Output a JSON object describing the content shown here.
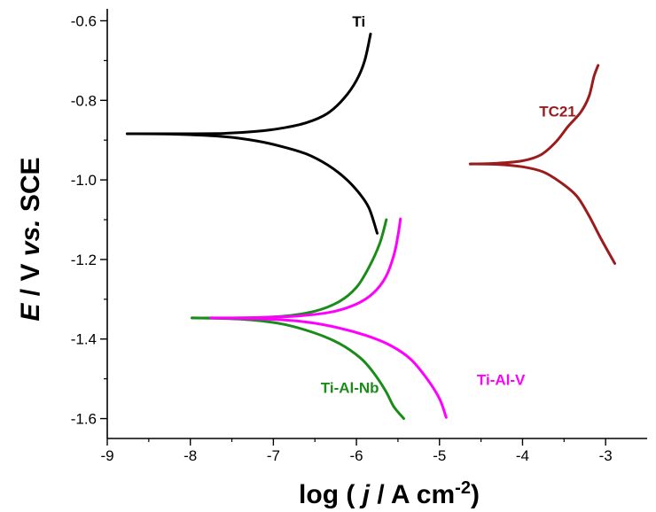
{
  "chart_data": {
    "type": "line",
    "xlabel": {
      "prefix": "log ( ",
      "italic": "j",
      "middle": " / A cm",
      "sup": "-2",
      "suffix": ")"
    },
    "ylabel": {
      "italic_e": "E",
      "middle": " / V ",
      "italic_vs": "vs.",
      "suffix": " SCE"
    },
    "xlim": [
      -9,
      -2.5
    ],
    "ylim": [
      -1.65,
      -0.57
    ],
    "xticks": [
      -9,
      -8,
      -7,
      -6,
      -5,
      -4,
      -3
    ],
    "xtick_labels": [
      "-9",
      "-8",
      "-7",
      "-6",
      "-5",
      "-4",
      "-3"
    ],
    "yticks": [
      -0.6,
      -0.8,
      -1.0,
      -1.2,
      -1.4,
      -1.6
    ],
    "ytick_labels": [
      "-0.6",
      "-0.8",
      "-1.0",
      "-1.2",
      "-1.4",
      "-1.6"
    ],
    "grid": false,
    "series": [
      {
        "name": "Ti",
        "color": "#000000",
        "branches": [
          [
            [
              -8.76,
              -0.884
            ],
            [
              -8.2,
              -0.884
            ],
            [
              -7.6,
              -0.883
            ],
            [
              -7.2,
              -0.878
            ],
            [
              -6.9,
              -0.87
            ],
            [
              -6.6,
              -0.856
            ],
            [
              -6.35,
              -0.833
            ],
            [
              -6.15,
              -0.795
            ],
            [
              -6.0,
              -0.75
            ],
            [
              -5.9,
              -0.7
            ],
            [
              -5.83,
              -0.633
            ]
          ],
          [
            [
              -8.76,
              -0.884
            ],
            [
              -8.2,
              -0.885
            ],
            [
              -7.6,
              -0.891
            ],
            [
              -7.2,
              -0.902
            ],
            [
              -6.9,
              -0.916
            ],
            [
              -6.6,
              -0.935
            ],
            [
              -6.35,
              -0.962
            ],
            [
              -6.15,
              -0.993
            ],
            [
              -5.98,
              -1.03
            ],
            [
              -5.85,
              -1.07
            ],
            [
              -5.75,
              -1.134
            ]
          ]
        ]
      },
      {
        "name": "TC21",
        "color": "#9b1c1c",
        "branches": [
          [
            [
              -4.63,
              -0.96
            ],
            [
              -4.3,
              -0.958
            ],
            [
              -4.0,
              -0.952
            ],
            [
              -3.78,
              -0.937
            ],
            [
              -3.6,
              -0.905
            ],
            [
              -3.45,
              -0.865
            ],
            [
              -3.3,
              -0.83
            ],
            [
              -3.2,
              -0.79
            ],
            [
              -3.14,
              -0.74
            ],
            [
              -3.09,
              -0.712
            ]
          ],
          [
            [
              -4.63,
              -0.96
            ],
            [
              -4.3,
              -0.961
            ],
            [
              -4.0,
              -0.967
            ],
            [
              -3.75,
              -0.98
            ],
            [
              -3.55,
              -1.005
            ],
            [
              -3.35,
              -1.04
            ],
            [
              -3.2,
              -1.09
            ],
            [
              -3.05,
              -1.15
            ],
            [
              -2.89,
              -1.21
            ]
          ]
        ]
      },
      {
        "name": "Ti-Al-Nb",
        "color": "#1a8c1a",
        "branches": [
          [
            [
              -7.98,
              -1.347
            ],
            [
              -7.4,
              -1.347
            ],
            [
              -6.9,
              -1.343
            ],
            [
              -6.5,
              -1.33
            ],
            [
              -6.2,
              -1.305
            ],
            [
              -6.0,
              -1.27
            ],
            [
              -5.85,
              -1.22
            ],
            [
              -5.72,
              -1.16
            ],
            [
              -5.64,
              -1.1
            ]
          ],
          [
            [
              -7.98,
              -1.347
            ],
            [
              -7.4,
              -1.35
            ],
            [
              -6.9,
              -1.362
            ],
            [
              -6.5,
              -1.385
            ],
            [
              -6.2,
              -1.412
            ],
            [
              -5.95,
              -1.448
            ],
            [
              -5.8,
              -1.483
            ],
            [
              -5.65,
              -1.53
            ],
            [
              -5.55,
              -1.57
            ],
            [
              -5.43,
              -1.6
            ]
          ]
        ]
      },
      {
        "name": "Ti-Al-V",
        "color": "#ff00ff",
        "branches": [
          [
            [
              -7.75,
              -1.347
            ],
            [
              -7.2,
              -1.346
            ],
            [
              -6.7,
              -1.342
            ],
            [
              -6.3,
              -1.332
            ],
            [
              -6.0,
              -1.312
            ],
            [
              -5.8,
              -1.285
            ],
            [
              -5.65,
              -1.245
            ],
            [
              -5.55,
              -1.19
            ],
            [
              -5.5,
              -1.14
            ],
            [
              -5.47,
              -1.098
            ]
          ],
          [
            [
              -7.75,
              -1.347
            ],
            [
              -7.2,
              -1.349
            ],
            [
              -6.7,
              -1.355
            ],
            [
              -6.3,
              -1.368
            ],
            [
              -5.9,
              -1.39
            ],
            [
              -5.6,
              -1.415
            ],
            [
              -5.35,
              -1.45
            ],
            [
              -5.15,
              -1.5
            ],
            [
              -5.0,
              -1.55
            ],
            [
              -4.92,
              -1.597
            ]
          ]
        ]
      }
    ],
    "annotations": [
      {
        "text": "Ti",
        "x": -6.05,
        "y": -0.615,
        "series": "Ti"
      },
      {
        "text": "TC21",
        "x": -3.8,
        "y": -0.84,
        "series": "TC21"
      },
      {
        "text": "Ti-Al-Nb",
        "x": -6.43,
        "y": -1.535,
        "series": "Ti-Al-Nb"
      },
      {
        "text": "Ti-Al-V",
        "x": -4.55,
        "y": -1.515,
        "series": "Ti-Al-V"
      }
    ]
  }
}
